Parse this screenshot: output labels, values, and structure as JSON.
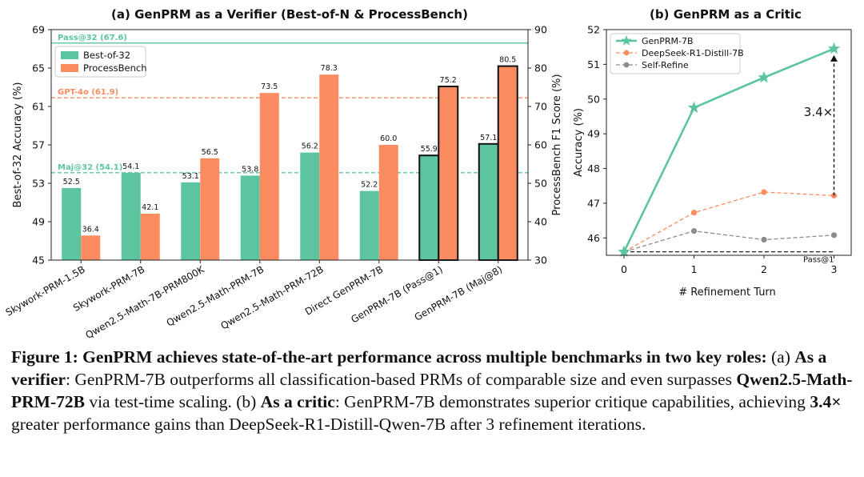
{
  "colors": {
    "verifier": "#5cc5a0",
    "processbench": "#fb8c62",
    "genprm": "#5cc5a0",
    "deepseek": "#fb8c62",
    "selfrefine": "#8c8c8c",
    "gpt4o": "#fb8c62",
    "text": "#111111"
  },
  "chart_data": [
    {
      "type": "bar",
      "title": "(a) GenPRM as a Verifier (Best-of-N & ProcessBench)",
      "xlabel": "",
      "ylabel": "Best-of-32 Accuracy (%)",
      "y2label": "ProcessBench F1 Score (%)",
      "ylim": [
        45,
        69
      ],
      "y2lim": [
        30,
        90
      ],
      "yticks": [
        "45",
        "49",
        "53",
        "57",
        "61",
        "65",
        "69"
      ],
      "y2ticks": [
        "30",
        "40",
        "50",
        "60",
        "70",
        "80",
        "90"
      ],
      "categories": [
        "Skywork-PRM-1.5B",
        "Skywork-PRM-7B",
        "Qwen2.5-Math-7B-PRM800K",
        "Qwen2.5-Math-PRM-7B",
        "Qwen2.5-Math-PRM-72B",
        "Direct GenPRM-7B",
        "GenPRM-7B (Pass@1)",
        "GenPRM-7B (Maj@8)"
      ],
      "series": [
        {
          "name": "Best-of-32",
          "axis": "left",
          "values": [
            52.5,
            54.1,
            53.1,
            53.8,
            56.2,
            52.2,
            55.9,
            57.1
          ],
          "labels": [
            "52.5",
            "54.1",
            "53.1",
            "53.8",
            "56.2",
            "52.2",
            "55.9",
            "57.1"
          ]
        },
        {
          "name": "ProcessBench",
          "axis": "right",
          "values": [
            36.4,
            42.1,
            56.5,
            73.5,
            78.3,
            60.0,
            75.2,
            80.5
          ],
          "labels": [
            "36.4",
            "42.1",
            "56.5",
            "73.5",
            "78.3",
            "60.0",
            "75.2",
            "80.5"
          ]
        }
      ],
      "highlighted_categories": [
        6,
        7
      ],
      "reference_lines": [
        {
          "label": "Pass@32 (67.6)",
          "value": 67.6,
          "color": "#5cc5a0",
          "style": "solid"
        },
        {
          "label": "GPT-4o (61.9)",
          "value": 61.9,
          "color": "#fb8c62",
          "style": "dashed"
        },
        {
          "label": "Maj@32 (54.1)",
          "value": 54.1,
          "color": "#5cc5a0",
          "style": "dashed"
        }
      ],
      "legend": "top-left",
      "grid": false
    },
    {
      "type": "line",
      "title": "(b) GenPRM as a Critic",
      "xlabel": "# Refinement Turn",
      "ylabel": "Accuracy (%)",
      "x": [
        0,
        1,
        2,
        3
      ],
      "xticks": [
        "0",
        "1",
        "2",
        "3"
      ],
      "ylim": [
        45.5,
        52
      ],
      "yticks": [
        "46",
        "47",
        "48",
        "49",
        "50",
        "51",
        "52"
      ],
      "series": [
        {
          "name": "GenPRM-7B",
          "values": [
            45.6,
            49.75,
            50.62,
            51.45
          ],
          "style": "solid",
          "marker": "star"
        },
        {
          "name": "DeepSeek-R1-Distill-7B",
          "values": [
            45.6,
            46.73,
            47.32,
            47.22
          ],
          "style": "dashed",
          "marker": "circle"
        },
        {
          "name": "Self-Refine",
          "values": [
            45.6,
            46.2,
            45.95,
            46.08
          ],
          "style": "dashed",
          "marker": "circle"
        }
      ],
      "baseline": {
        "label": "Pass@1",
        "value": 45.6
      },
      "annotation": {
        "text": "3.4×"
      },
      "legend": "top-left",
      "grid": false
    }
  ],
  "caption": {
    "fig_label": "Figure 1: ",
    "headline": "GenPRM achieves state-of-the-art performance across multiple benchmarks in two key roles:",
    "part_a_prefix": " (a) ",
    "part_a_label": "As a verifier",
    "part_a_text_1": ": GenPRM-7B outperforms all classification-based PRMs of comparable size and even surpasses ",
    "part_a_bold": "Qwen2.5-Math-PRM-72B",
    "part_a_text_2": " via test-time scaling. (b) ",
    "part_b_label": "As a critic",
    "part_b_text_1": ": GenPRM-7B demonstrates superior critique capabilities, achieving ",
    "part_b_bold": "3.4×",
    "part_b_text_2": " greater performance gains than DeepSeek-R1-Distill-Qwen-7B after 3 refinement iterations."
  }
}
